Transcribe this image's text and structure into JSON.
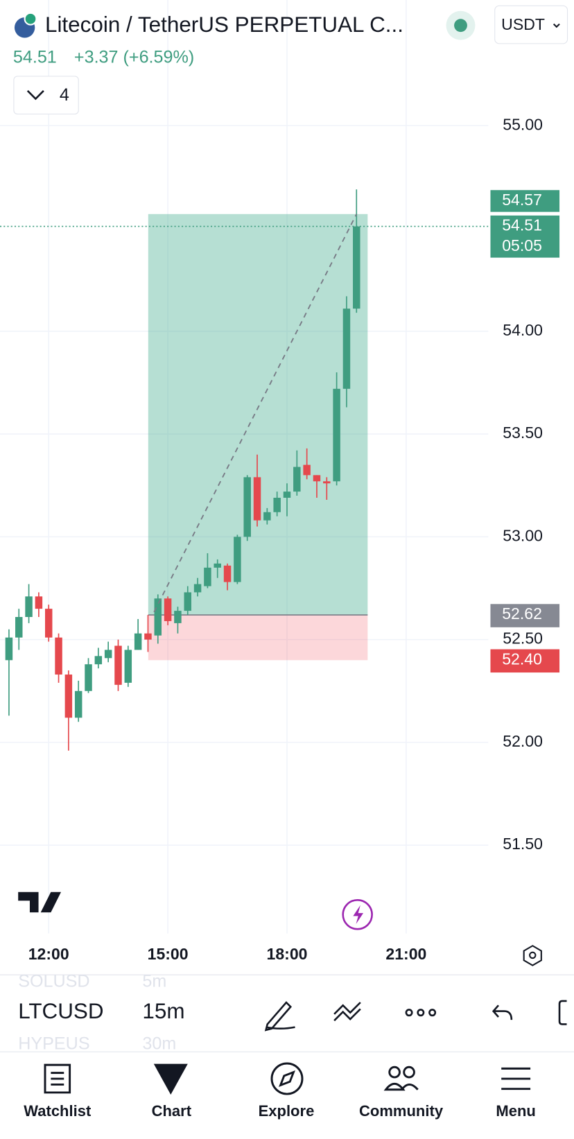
{
  "header": {
    "title": "Litecoin / TetherUS PERPETUAL C...",
    "price": "54.51",
    "change": "+3.37 (+6.59%)",
    "indicators": "4",
    "currency": "USDT"
  },
  "chart_data": {
    "type": "candlestick",
    "x": [
      "11:00",
      "11:15",
      "11:30",
      "11:45",
      "12:00",
      "12:15",
      "12:30",
      "12:45",
      "13:00",
      "13:15",
      "13:30",
      "13:45",
      "14:00",
      "14:15",
      "14:30",
      "14:45",
      "15:00",
      "15:15",
      "15:30",
      "15:45",
      "16:00",
      "16:15",
      "16:30",
      "16:45",
      "17:00",
      "17:15",
      "17:30",
      "17:45",
      "18:00",
      "18:15",
      "18:30",
      "18:45",
      "19:00",
      "19:15",
      "19:30",
      "19:45"
    ],
    "open": [
      52.4,
      52.51,
      52.61,
      52.71,
      52.65,
      52.51,
      52.33,
      52.12,
      52.25,
      52.38,
      52.41,
      52.47,
      52.29,
      52.45,
      52.53,
      52.52,
      52.7,
      52.58,
      52.64,
      52.73,
      52.76,
      52.85,
      52.86,
      52.78,
      53.0,
      53.29,
      53.08,
      53.12,
      53.19,
      53.22,
      53.35,
      53.3,
      53.27,
      53.27,
      53.72,
      54.11
    ],
    "high": [
      52.55,
      52.65,
      52.77,
      52.73,
      52.67,
      52.53,
      52.35,
      52.3,
      52.41,
      52.46,
      52.49,
      52.5,
      52.47,
      52.6,
      52.62,
      52.72,
      52.71,
      52.66,
      52.76,
      52.8,
      52.92,
      52.89,
      52.87,
      53.01,
      53.3,
      53.4,
      53.14,
      53.22,
      53.26,
      53.42,
      53.43,
      53.3,
      53.29,
      53.8,
      54.17,
      54.69
    ],
    "low": [
      52.13,
      52.45,
      52.58,
      52.61,
      52.49,
      52.29,
      51.96,
      52.1,
      52.24,
      52.36,
      52.39,
      52.25,
      52.27,
      52.45,
      52.44,
      52.48,
      52.57,
      52.53,
      52.62,
      52.71,
      52.75,
      52.8,
      52.74,
      52.77,
      52.98,
      53.05,
      53.06,
      53.1,
      53.1,
      53.2,
      53.28,
      53.19,
      53.18,
      53.25,
      53.63,
      54.09
    ],
    "close": [
      52.51,
      52.61,
      52.71,
      52.65,
      52.51,
      52.33,
      52.12,
      52.25,
      52.38,
      52.42,
      52.45,
      52.28,
      52.45,
      52.53,
      52.5,
      52.7,
      52.59,
      52.64,
      52.73,
      52.77,
      52.85,
      52.87,
      52.78,
      53.0,
      53.29,
      53.08,
      53.12,
      53.19,
      53.22,
      53.34,
      53.3,
      53.27,
      53.26,
      53.72,
      54.11,
      54.51
    ],
    "up_color": "#3f9d80",
    "down_color": "#e5484d",
    "ylim": [
      51.2,
      55.5
    ],
    "yticks": [
      {
        "value": 51.5,
        "label": "51.50"
      },
      {
        "value": 52,
        "label": "52.00"
      },
      {
        "value": 52.5,
        "label": "52.50"
      },
      {
        "value": 53,
        "label": "53.00"
      },
      {
        "value": 53.5,
        "label": "53.50"
      },
      {
        "value": 54,
        "label": "54.00"
      },
      {
        "value": 55,
        "label": "55.00"
      }
    ],
    "xticks": [
      "12:00",
      "15:00",
      "18:00",
      "21:00"
    ],
    "grid": true,
    "last_price": {
      "value": 54.51,
      "label": "54.51",
      "countdown": "05:05"
    },
    "position": {
      "target": {
        "value": 54.57,
        "label": "54.57"
      },
      "entry": {
        "value": 52.62,
        "label": "52.62"
      },
      "stop": {
        "value": 52.4,
        "label": "52.40"
      }
    }
  },
  "toolbar": {
    "symbols": [
      "SOLUSD",
      "LTCUSD",
      "HYPEUS"
    ],
    "intervals": [
      "5m",
      "15m",
      "30m"
    ]
  },
  "nav": [
    "Watchlist",
    "Chart",
    "Explore",
    "Community",
    "Menu"
  ]
}
